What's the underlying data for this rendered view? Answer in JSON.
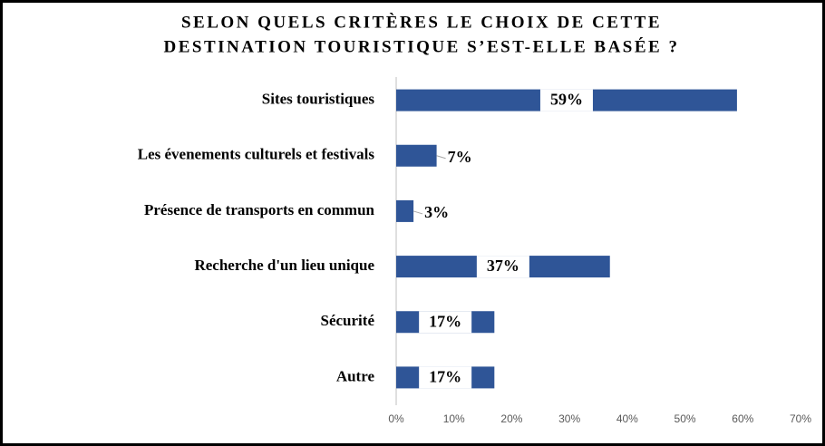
{
  "chart_data": {
    "type": "bar",
    "orientation": "horizontal",
    "title": [
      "SELON QUELS CRITÈRES LE CHOIX DE CETTE",
      "DESTINATION TOURISTIQUE S’EST-ELLE BASÉE ?"
    ],
    "categories": [
      "Sites touristiques",
      "Les évenements culturels et festivals",
      "Présence de transports en commun",
      "Recherche d'un lieu unique",
      "Sécurité",
      "Autre"
    ],
    "values": [
      59,
      7,
      3,
      37,
      17,
      17
    ],
    "value_labels": [
      "59%",
      "7%",
      "3%",
      "37%",
      "17%",
      "17%"
    ],
    "color": "#2f5597",
    "xlim": [
      0,
      70
    ],
    "xticks": [
      {
        "value": 0,
        "label": "0%"
      },
      {
        "value": 10,
        "label": "10%"
      },
      {
        "value": 20,
        "label": "20%"
      },
      {
        "value": 30,
        "label": "30%"
      },
      {
        "value": 40,
        "label": "40%"
      },
      {
        "value": 50,
        "label": "50%"
      },
      {
        "value": 60,
        "label": "60%"
      },
      {
        "value": 70,
        "label": "70%"
      }
    ],
    "grid": false
  }
}
